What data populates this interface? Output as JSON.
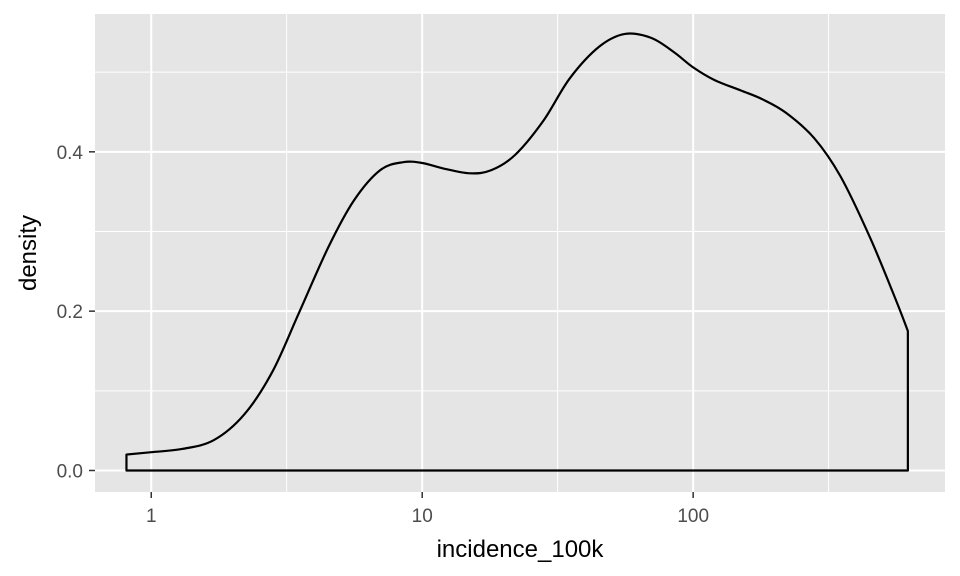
{
  "chart_data": {
    "type": "area",
    "xlabel": "incidence_100k",
    "ylabel": "density",
    "x_scale": "log10",
    "xlim": [
      0.62,
      850
    ],
    "ylim": [
      -0.027,
      0.573
    ],
    "x_ticks": [
      {
        "value": 1,
        "label": "1"
      },
      {
        "value": 10,
        "label": "10"
      },
      {
        "value": 100,
        "label": "100"
      }
    ],
    "x_minor_ticks": [
      3.16,
      31.6,
      316
    ],
    "y_ticks": [
      {
        "value": 0.0,
        "label": "0.0"
      },
      {
        "value": 0.2,
        "label": "0.2"
      },
      {
        "value": 0.4,
        "label": "0.4"
      }
    ],
    "y_minor_ticks": [
      0.1,
      0.3,
      0.5
    ],
    "grid": true,
    "series": [
      {
        "x": [
          0.81,
          1.0,
          1.3,
          1.7,
          2.2,
          2.8,
          3.5,
          4.5,
          5.6,
          7.0,
          8.5,
          10.0,
          12.0,
          15.0,
          18.0,
          22.0,
          28.0,
          35.0,
          45.0,
          56.0,
          70.0,
          85.0,
          100.0,
          120.0,
          150.0,
          180.0,
          220.0,
          280.0,
          350.0,
          450.0,
          560.0,
          620.0
        ],
        "y": [
          0.02,
          0.023,
          0.027,
          0.038,
          0.07,
          0.124,
          0.197,
          0.28,
          0.339,
          0.377,
          0.387,
          0.386,
          0.379,
          0.373,
          0.377,
          0.396,
          0.439,
          0.492,
          0.532,
          0.548,
          0.543,
          0.525,
          0.506,
          0.49,
          0.477,
          0.466,
          0.449,
          0.417,
          0.369,
          0.292,
          0.214,
          0.175
        ]
      }
    ],
    "colors": {
      "panel": "#e5e5e5",
      "grid": "#ffffff",
      "line": "#000000"
    }
  }
}
